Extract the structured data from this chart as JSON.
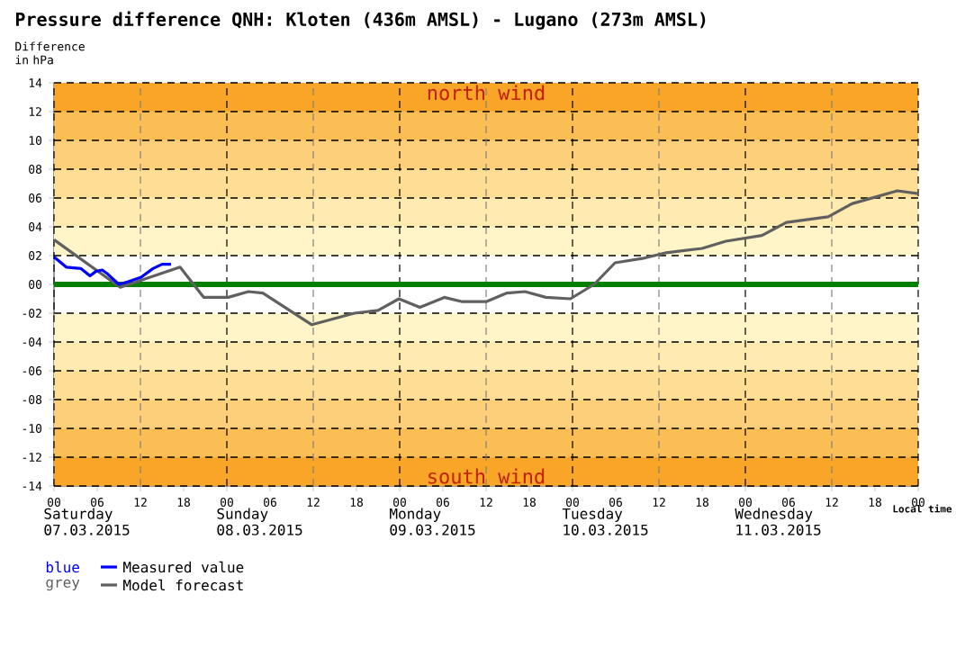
{
  "chart_data": {
    "type": "line",
    "title": "Pressure difference QNH: Kloten (436m AMSL) - Lugano (273m AMSL)",
    "ylabel": "Difference in hPa",
    "xlim": [
      0,
      120
    ],
    "ylim": [
      -14,
      14
    ],
    "xticks": [
      {
        "value": 0,
        "label": "00"
      },
      {
        "value": 6,
        "label": "06"
      },
      {
        "value": 12,
        "label": "12"
      },
      {
        "value": 18,
        "label": "18"
      },
      {
        "value": 24,
        "label": "00"
      },
      {
        "value": 30,
        "label": "06"
      },
      {
        "value": 36,
        "label": "12"
      },
      {
        "value": 42,
        "label": "18"
      },
      {
        "value": 48,
        "label": "00"
      },
      {
        "value": 54,
        "label": "06"
      },
      {
        "value": 60,
        "label": "12"
      },
      {
        "value": 66,
        "label": "18"
      },
      {
        "value": 72,
        "label": "00"
      },
      {
        "value": 78,
        "label": "06"
      },
      {
        "value": 84,
        "label": "12"
      },
      {
        "value": 90,
        "label": "18"
      },
      {
        "value": 96,
        "label": "00"
      },
      {
        "value": 102,
        "label": "06"
      },
      {
        "value": 108,
        "label": "12"
      },
      {
        "value": 114,
        "label": "18"
      },
      {
        "value": 120,
        "label": "00"
      }
    ],
    "yticks": [
      {
        "value": -14,
        "label": "-14"
      },
      {
        "value": -12,
        "label": "-12"
      },
      {
        "value": -10,
        "label": "-10"
      },
      {
        "value": -8,
        "label": "-08"
      },
      {
        "value": -6,
        "label": "-06"
      },
      {
        "value": -4,
        "label": "-04"
      },
      {
        "value": -2,
        "label": "-02"
      },
      {
        "value": 0,
        "label": "00"
      },
      {
        "value": 2,
        "label": "02"
      },
      {
        "value": 4,
        "label": "04"
      },
      {
        "value": 6,
        "label": "06"
      },
      {
        "value": 8,
        "label": "08"
      },
      {
        "value": 10,
        "label": "10"
      },
      {
        "value": 12,
        "label": "12"
      },
      {
        "value": 14,
        "label": "14"
      }
    ],
    "grid": true,
    "legend": "bottom",
    "line_style": "solid",
    "series": [
      {
        "name": "Model forecast",
        "color": "#606060",
        "x": [
          0,
          9.2,
          17.5,
          20.8,
          24.2,
          27,
          29,
          35.8,
          41.7,
          45,
          47.9,
          50.8,
          54.2,
          56.7,
          60,
          62.9,
          65.4,
          68.3,
          71.7,
          75,
          77.9,
          81.7,
          85,
          90,
          93.3,
          98.3,
          101.7,
          107.5,
          110.8,
          117.1,
          120
        ],
        "values": [
          3.1,
          -0.2,
          1.2,
          -0.9,
          -0.9,
          -0.5,
          -0.6,
          -2.8,
          -2.0,
          -1.8,
          -1.0,
          -1.6,
          -0.9,
          -1.2,
          -1.2,
          -0.6,
          -0.5,
          -0.9,
          -1.0,
          0.0,
          1.5,
          1.8,
          2.2,
          2.5,
          3.0,
          3.4,
          4.3,
          4.7,
          5.6,
          6.5,
          6.3
        ]
      },
      {
        "name": "Measured value",
        "color": "#0000ff",
        "x": [
          0,
          1.7,
          3.75,
          5,
          5.8,
          6.7,
          7.5,
          9,
          10.4,
          12.1,
          13.75,
          15,
          16.25
        ],
        "values": [
          1.9,
          1.2,
          1.1,
          0.6,
          0.9,
          1.0,
          0.7,
          0.0,
          0.2,
          0.5,
          1.1,
          1.4,
          1.4
        ]
      }
    ],
    "ref_lines": [
      {
        "axis": "y",
        "value": 0,
        "color": "#008000"
      }
    ],
    "bands": [
      {
        "axis": "y",
        "from": 12,
        "to": 14,
        "color": "#f9a628"
      },
      {
        "axis": "y",
        "from": 10,
        "to": 12,
        "color": "#fbbe55"
      },
      {
        "axis": "y",
        "from": 8,
        "to": 10,
        "color": "#fdcf7a"
      },
      {
        "axis": "y",
        "from": 6,
        "to": 8,
        "color": "#fedd95"
      },
      {
        "axis": "y",
        "from": 4,
        "to": 6,
        "color": "#ffeab0"
      },
      {
        "axis": "y",
        "from": 2,
        "to": 4,
        "color": "#fff5c8"
      },
      {
        "axis": "y",
        "from": -4,
        "to": -2,
        "color": "#fff5c8"
      },
      {
        "axis": "y",
        "from": -6,
        "to": -4,
        "color": "#ffeab0"
      },
      {
        "axis": "y",
        "from": -8,
        "to": -6,
        "color": "#fedd95"
      },
      {
        "axis": "y",
        "from": -10,
        "to": -8,
        "color": "#fdcf7a"
      },
      {
        "axis": "y",
        "from": -12,
        "to": -10,
        "color": "#fbbe55"
      },
      {
        "axis": "y",
        "from": -14,
        "to": -12,
        "color": "#f9a628"
      }
    ],
    "annotations": [
      "north wind",
      "south wind",
      "Saturday 07.03.2015",
      "Sunday 08.03.2015",
      "Monday 09.03.2015",
      "Tuesday 10.03.2015",
      "Wednesday 11.03.2015",
      "Local time",
      "blue",
      "grey"
    ]
  }
}
